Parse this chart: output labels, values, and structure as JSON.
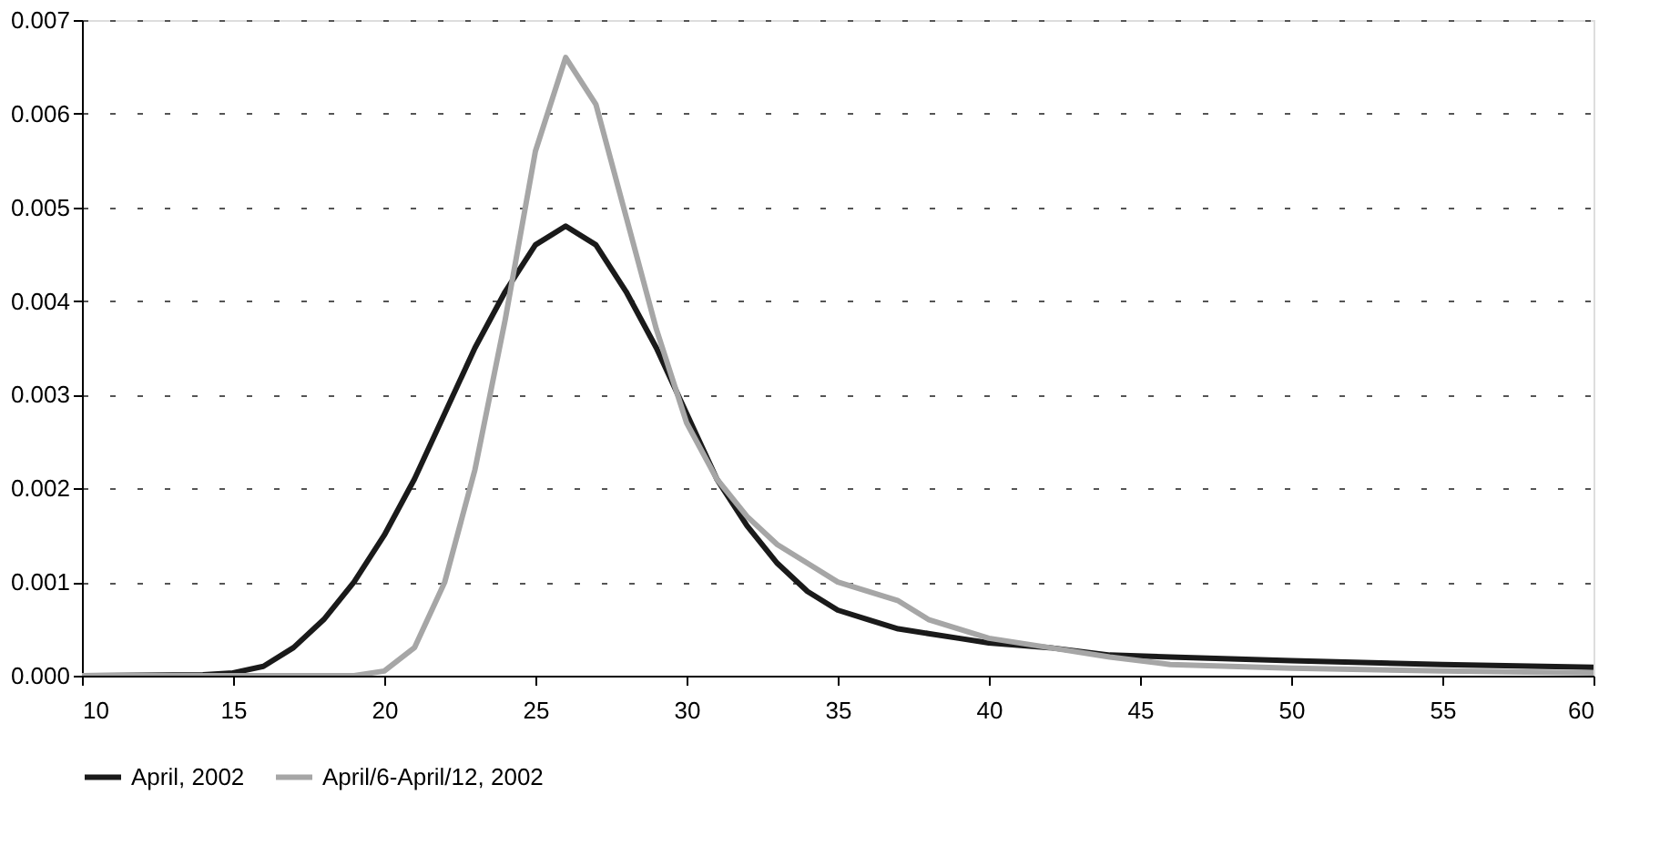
{
  "chart_data": {
    "type": "line",
    "xlim": [
      10,
      60
    ],
    "xticks": [
      10,
      15,
      20,
      25,
      30,
      35,
      40,
      45,
      50,
      55,
      60
    ],
    "ylim": [
      0,
      0.007
    ],
    "yticks": [
      {
        "value": 0,
        "label": "0.000"
      },
      0.001,
      0.002,
      0.003,
      0.004,
      0.005,
      0.006,
      0.007
    ],
    "grid": "y",
    "legend": "bottom",
    "marker": "none",
    "series": [
      {
        "name": "April, 2002",
        "color": "#1a1a1a",
        "x": [
          10,
          14,
          15,
          16,
          17,
          18,
          19,
          20,
          21,
          22,
          23,
          24,
          25,
          26,
          27,
          28,
          29,
          30,
          31,
          32,
          33,
          34,
          35,
          36,
          37,
          38,
          39,
          40,
          42,
          44,
          46,
          48,
          50,
          55,
          60
        ],
        "values": [
          0,
          1e-05,
          3e-05,
          0.0001,
          0.0003,
          0.0006,
          0.001,
          0.0015,
          0.0021,
          0.0028,
          0.0035,
          0.0041,
          0.0046,
          0.0048,
          0.0046,
          0.0041,
          0.0035,
          0.0028,
          0.0021,
          0.0016,
          0.0012,
          0.0009,
          0.0007,
          0.0006,
          0.0005,
          0.00045,
          0.0004,
          0.00035,
          0.0003,
          0.00022,
          0.0002,
          0.00018,
          0.00016,
          0.00012,
          9e-05
        ]
      },
      {
        "name": "April/6-April/12, 2002",
        "color": "#a6a6a6",
        "x": [
          10,
          19,
          20,
          21,
          22,
          23,
          24,
          25,
          26,
          27,
          28,
          29,
          30,
          31,
          32,
          33,
          34,
          35,
          36,
          37,
          38,
          39,
          40,
          42,
          44,
          46,
          50,
          55,
          60
        ],
        "values": [
          0,
          0,
          5e-05,
          0.0003,
          0.001,
          0.0022,
          0.0038,
          0.0056,
          0.0066,
          0.0061,
          0.0049,
          0.0037,
          0.0027,
          0.0021,
          0.0017,
          0.0014,
          0.0012,
          0.001,
          0.0009,
          0.0008,
          0.0006,
          0.0005,
          0.0004,
          0.0003,
          0.0002,
          0.00012,
          8e-05,
          5e-05,
          3e-05
        ]
      }
    ]
  }
}
